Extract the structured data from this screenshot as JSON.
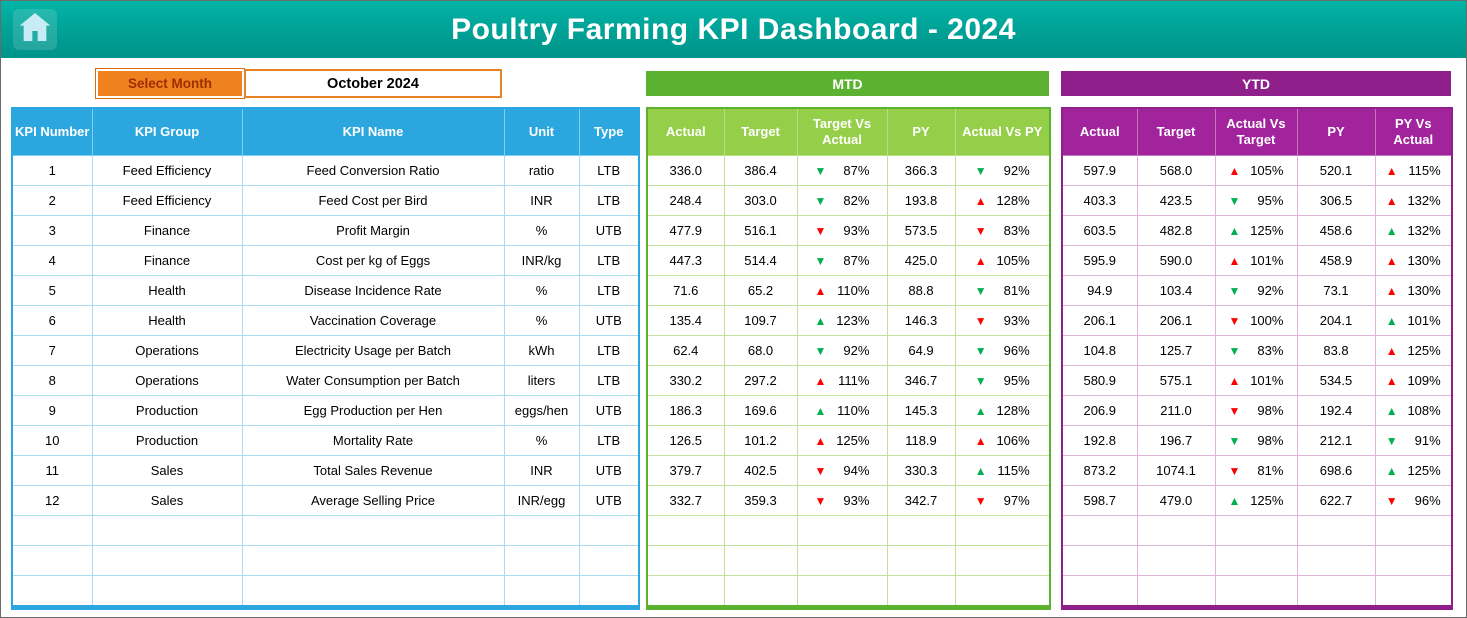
{
  "header": {
    "title": "Poultry Farming KPI Dashboard - 2024"
  },
  "controls": {
    "select_month_label": "Select Month",
    "selected_month": "October 2024"
  },
  "sections": {
    "mtd_label": "MTD",
    "ytd_label": "YTD"
  },
  "icons": {
    "home": "home-icon",
    "up_arrow": "up-arrow-icon",
    "down_arrow": "down-arrow-icon"
  },
  "colors": {
    "banner_teal": "#00a095",
    "accent_blue": "#2ba6df",
    "accent_green": "#5bb231",
    "accent_purple": "#8f1f8b",
    "button_orange": "#f0811f",
    "button_text_red": "#9c2f00",
    "arrow_green": "#00b050",
    "arrow_red": "#ff0000"
  },
  "table": {
    "main_headers": [
      "KPI Number",
      "KPI Group",
      "KPI Name",
      "Unit",
      "Type"
    ],
    "mtd_headers": [
      "Actual",
      "Target",
      "Target Vs Actual",
      "PY",
      "Actual Vs PY"
    ],
    "ytd_headers": [
      "Actual",
      "Target",
      "Actual Vs Target",
      "PY",
      "PY Vs Actual"
    ],
    "empty_rows": 3,
    "rows": [
      {
        "num": "1",
        "group": "Feed Efficiency",
        "name": "Feed Conversion Ratio",
        "unit": "ratio",
        "type": "LTB",
        "mtd": [
          "336.0",
          "386.4",
          {
            "d": "down",
            "c": "green",
            "v": "87%"
          },
          "366.3",
          {
            "d": "down",
            "c": "green",
            "v": "92%"
          }
        ],
        "ytd": [
          "597.9",
          "568.0",
          {
            "d": "up",
            "c": "red",
            "v": "105%"
          },
          "520.1",
          {
            "d": "up",
            "c": "red",
            "v": "115%"
          }
        ]
      },
      {
        "num": "2",
        "group": "Feed Efficiency",
        "name": "Feed Cost per Bird",
        "unit": "INR",
        "type": "LTB",
        "mtd": [
          "248.4",
          "303.0",
          {
            "d": "down",
            "c": "green",
            "v": "82%"
          },
          "193.8",
          {
            "d": "up",
            "c": "red",
            "v": "128%"
          }
        ],
        "ytd": [
          "403.3",
          "423.5",
          {
            "d": "down",
            "c": "green",
            "v": "95%"
          },
          "306.5",
          {
            "d": "up",
            "c": "red",
            "v": "132%"
          }
        ]
      },
      {
        "num": "3",
        "group": "Finance",
        "name": "Profit Margin",
        "unit": "%",
        "type": "UTB",
        "mtd": [
          "477.9",
          "516.1",
          {
            "d": "down",
            "c": "red",
            "v": "93%"
          },
          "573.5",
          {
            "d": "down",
            "c": "red",
            "v": "83%"
          }
        ],
        "ytd": [
          "603.5",
          "482.8",
          {
            "d": "up",
            "c": "green",
            "v": "125%"
          },
          "458.6",
          {
            "d": "up",
            "c": "green",
            "v": "132%"
          }
        ]
      },
      {
        "num": "4",
        "group": "Finance",
        "name": "Cost per kg of Eggs",
        "unit": "INR/kg",
        "type": "LTB",
        "mtd": [
          "447.3",
          "514.4",
          {
            "d": "down",
            "c": "green",
            "v": "87%"
          },
          "425.0",
          {
            "d": "up",
            "c": "red",
            "v": "105%"
          }
        ],
        "ytd": [
          "595.9",
          "590.0",
          {
            "d": "up",
            "c": "red",
            "v": "101%"
          },
          "458.9",
          {
            "d": "up",
            "c": "red",
            "v": "130%"
          }
        ]
      },
      {
        "num": "5",
        "group": "Health",
        "name": "Disease Incidence Rate",
        "unit": "%",
        "type": "LTB",
        "mtd": [
          "71.6",
          "65.2",
          {
            "d": "up",
            "c": "red",
            "v": "110%"
          },
          "88.8",
          {
            "d": "down",
            "c": "green",
            "v": "81%"
          }
        ],
        "ytd": [
          "94.9",
          "103.4",
          {
            "d": "down",
            "c": "green",
            "v": "92%"
          },
          "73.1",
          {
            "d": "up",
            "c": "red",
            "v": "130%"
          }
        ]
      },
      {
        "num": "6",
        "group": "Health",
        "name": "Vaccination Coverage",
        "unit": "%",
        "type": "UTB",
        "mtd": [
          "135.4",
          "109.7",
          {
            "d": "up",
            "c": "green",
            "v": "123%"
          },
          "146.3",
          {
            "d": "down",
            "c": "red",
            "v": "93%"
          }
        ],
        "ytd": [
          "206.1",
          "206.1",
          {
            "d": "down",
            "c": "red",
            "v": "100%"
          },
          "204.1",
          {
            "d": "up",
            "c": "green",
            "v": "101%"
          }
        ]
      },
      {
        "num": "7",
        "group": "Operations",
        "name": "Electricity Usage per Batch",
        "unit": "kWh",
        "type": "LTB",
        "mtd": [
          "62.4",
          "68.0",
          {
            "d": "down",
            "c": "green",
            "v": "92%"
          },
          "64.9",
          {
            "d": "down",
            "c": "green",
            "v": "96%"
          }
        ],
        "ytd": [
          "104.8",
          "125.7",
          {
            "d": "down",
            "c": "green",
            "v": "83%"
          },
          "83.8",
          {
            "d": "up",
            "c": "red",
            "v": "125%"
          }
        ]
      },
      {
        "num": "8",
        "group": "Operations",
        "name": "Water Consumption per Batch",
        "unit": "liters",
        "type": "LTB",
        "mtd": [
          "330.2",
          "297.2",
          {
            "d": "up",
            "c": "red",
            "v": "111%"
          },
          "346.7",
          {
            "d": "down",
            "c": "green",
            "v": "95%"
          }
        ],
        "ytd": [
          "580.9",
          "575.1",
          {
            "d": "up",
            "c": "red",
            "v": "101%"
          },
          "534.5",
          {
            "d": "up",
            "c": "red",
            "v": "109%"
          }
        ]
      },
      {
        "num": "9",
        "group": "Production",
        "name": "Egg Production per Hen",
        "unit": "eggs/hen",
        "type": "UTB",
        "mtd": [
          "186.3",
          "169.6",
          {
            "d": "up",
            "c": "green",
            "v": "110%"
          },
          "145.3",
          {
            "d": "up",
            "c": "green",
            "v": "128%"
          }
        ],
        "ytd": [
          "206.9",
          "211.0",
          {
            "d": "down",
            "c": "red",
            "v": "98%"
          },
          "192.4",
          {
            "d": "up",
            "c": "green",
            "v": "108%"
          }
        ]
      },
      {
        "num": "10",
        "group": "Production",
        "name": "Mortality Rate",
        "unit": "%",
        "type": "LTB",
        "mtd": [
          "126.5",
          "101.2",
          {
            "d": "up",
            "c": "red",
            "v": "125%"
          },
          "118.9",
          {
            "d": "up",
            "c": "red",
            "v": "106%"
          }
        ],
        "ytd": [
          "192.8",
          "196.7",
          {
            "d": "down",
            "c": "green",
            "v": "98%"
          },
          "212.1",
          {
            "d": "down",
            "c": "green",
            "v": "91%"
          }
        ]
      },
      {
        "num": "11",
        "group": "Sales",
        "name": "Total Sales Revenue",
        "unit": "INR",
        "type": "UTB",
        "mtd": [
          "379.7",
          "402.5",
          {
            "d": "down",
            "c": "red",
            "v": "94%"
          },
          "330.3",
          {
            "d": "up",
            "c": "green",
            "v": "115%"
          }
        ],
        "ytd": [
          "873.2",
          "1074.1",
          {
            "d": "down",
            "c": "red",
            "v": "81%"
          },
          "698.6",
          {
            "d": "up",
            "c": "green",
            "v": "125%"
          }
        ]
      },
      {
        "num": "12",
        "group": "Sales",
        "name": "Average Selling Price",
        "unit": "INR/egg",
        "type": "UTB",
        "mtd": [
          "332.7",
          "359.3",
          {
            "d": "down",
            "c": "red",
            "v": "93%"
          },
          "342.7",
          {
            "d": "down",
            "c": "red",
            "v": "97%"
          }
        ],
        "ytd": [
          "598.7",
          "479.0",
          {
            "d": "up",
            "c": "green",
            "v": "125%"
          },
          "622.7",
          {
            "d": "down",
            "c": "red",
            "v": "96%"
          }
        ]
      }
    ]
  }
}
